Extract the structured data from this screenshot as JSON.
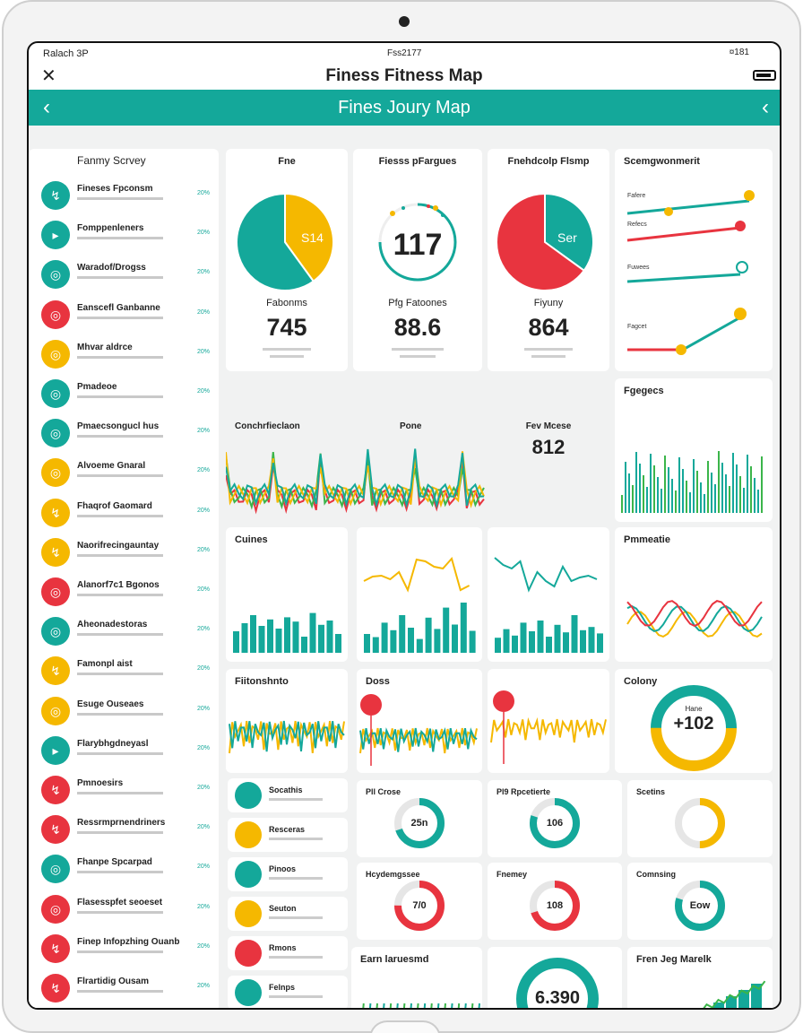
{
  "status": {
    "left": "Ralach 3P",
    "center": "Fss2177",
    "right": "¤181"
  },
  "app": {
    "title": "Finess Fitness Map",
    "close_glyph": "✕"
  },
  "banner": {
    "title": "Fines Joury Map",
    "back_glyph": "‹",
    "forward_glyph": "‹"
  },
  "sidebar": {
    "heading": "Fanmy Scrvey",
    "items": [
      {
        "label": "Fineses Fpconsm",
        "count": "20%",
        "color": "#14a89a",
        "glyph": "↯"
      },
      {
        "label": "Fomppenleners",
        "count": "20%",
        "color": "#14a89a",
        "glyph": "▸"
      },
      {
        "label": "Waradof/Drogss",
        "count": "20%",
        "color": "#14a89a",
        "glyph": "◎"
      },
      {
        "label": "Eanscefl Ganbanne",
        "count": "20%",
        "color": "#e8343f",
        "glyph": "◎"
      },
      {
        "label": "Mhvar aldrce",
        "count": "20%",
        "color": "#f5b800",
        "glyph": "◎"
      },
      {
        "label": "Pmadeoe",
        "count": "20%",
        "color": "#14a89a",
        "glyph": "◎"
      },
      {
        "label": "Pmaecsongucl hus",
        "count": "20%",
        "color": "#14a89a",
        "glyph": "◎"
      },
      {
        "label": "Alvoeme Gnaral",
        "count": "20%",
        "color": "#f5b800",
        "glyph": "◎"
      },
      {
        "label": "Fhaqrof Gaomard",
        "count": "20%",
        "color": "#f5b800",
        "glyph": "↯"
      },
      {
        "label": "Naorifrecingauntay",
        "count": "20%",
        "color": "#f5b800",
        "glyph": "↯"
      },
      {
        "label": "Alanorf7c1 Bgonos",
        "count": "20%",
        "color": "#e8343f",
        "glyph": "◎"
      },
      {
        "label": "Aheonadestoras",
        "count": "20%",
        "color": "#14a89a",
        "glyph": "◎"
      },
      {
        "label": "Famonpl aist",
        "count": "20%",
        "color": "#f5b800",
        "glyph": "↯"
      },
      {
        "label": "Esuge Ouseaes",
        "count": "20%",
        "color": "#f5b800",
        "glyph": "◎"
      },
      {
        "label": "Flarybhgdneyasl",
        "count": "20%",
        "color": "#14a89a",
        "glyph": "▸"
      },
      {
        "label": "Pmnoesirs",
        "count": "20%",
        "color": "#e8343f",
        "glyph": "↯"
      },
      {
        "label": "Ressrmprnendriners",
        "count": "20%",
        "color": "#e8343f",
        "glyph": "↯"
      },
      {
        "label": "Fhanpe Spcarpad",
        "count": "20%",
        "color": "#14a89a",
        "glyph": "◎"
      },
      {
        "label": "Flasesspfet seoeset",
        "count": "20%",
        "color": "#e8343f",
        "glyph": "◎"
      },
      {
        "label": "Finep Infopzhing Ouanb",
        "count": "20%",
        "color": "#e8343f",
        "glyph": "↯"
      },
      {
        "label": "Flrartidig Ousam",
        "count": "20%",
        "color": "#e8343f",
        "glyph": "↯"
      }
    ]
  },
  "top_cards": [
    {
      "title": "Fne",
      "center": "S14",
      "stat": "745",
      "stat_label": "Fabonms",
      "pie": [
        0.4,
        0.6
      ],
      "pie_colors": [
        "#f5b800",
        "#14a89a"
      ]
    },
    {
      "title": "Fiesss pFargues",
      "center": "117",
      "stat": "88.6",
      "stat_label": "Pfg Fatoones",
      "pie": null,
      "pie_colors": []
    },
    {
      "title": "Fnehdcolp Flsmp",
      "center": "Ser",
      "stat": "864",
      "stat_label": "Fiyuny",
      "pie": [
        0.35,
        0.65
      ],
      "pie_colors": [
        "#14a89a",
        "#e8343f"
      ]
    }
  ],
  "right_top": {
    "title": "Scemgwonmerit",
    "rows": [
      "Fafere",
      "Refecs",
      "Fuwees",
      "Fagcet"
    ]
  },
  "wave_card": {
    "title": "Conchrfieclaon",
    "label2": "Pone"
  },
  "pm_card": {
    "title": "Fev Mcese",
    "stat": "812",
    "ticks": [
      "30",
      "10",
      "S2"
    ]
  },
  "bar_card_right": {
    "title": "Fgegecs",
    "ticks": [
      "1C1"
    ]
  },
  "row2": [
    {
      "title": "Cuines",
      "values": [
        40,
        55,
        70,
        50,
        62,
        45,
        66,
        58,
        30,
        74,
        52,
        60,
        35
      ]
    },
    {
      "title": "",
      "values": [
        30,
        25,
        48,
        36,
        60,
        40,
        22,
        56,
        38,
        72,
        45,
        80,
        35
      ]
    },
    {
      "title": "",
      "values": [
        28,
        44,
        32,
        56,
        40,
        60,
        30,
        52,
        38,
        70,
        42,
        48,
        36
      ]
    },
    {
      "title": "Pmmeatie",
      "ticks": [
        "65",
        "50",
        "55",
        "55",
        "50"
      ]
    }
  ],
  "row3": [
    {
      "title": "Fiitonshnto"
    },
    {
      "title": "Doss"
    },
    {
      "title": ""
    },
    {
      "title": "Colony",
      "center": "+102",
      "sub": "Hane"
    }
  ],
  "left_mini": [
    {
      "label": "Socathis",
      "color": "#14a89a"
    },
    {
      "label": "Resceras",
      "color": "#f5b800"
    },
    {
      "label": "Pinoos",
      "color": "#14a89a"
    },
    {
      "label": "Seuton",
      "color": "#f5b800"
    },
    {
      "label": "Rmons",
      "color": "#e8343f"
    },
    {
      "label": "Felnps",
      "color": "#14a89a"
    }
  ],
  "gauge_cards": [
    {
      "title": "Pll Crose",
      "center": "25n",
      "frac": 0.7,
      "color": "#14a89a"
    },
    {
      "title": "Pl9 Rpcetierte",
      "center": "106",
      "frac": 0.8,
      "color": "#14a89a"
    },
    {
      "title": "Scetins",
      "center": "",
      "frac": 0.5,
      "color": "#f5b800"
    },
    {
      "title": "Hcydemgssee",
      "center": "7/0",
      "frac": 0.75,
      "color": "#e8343f"
    },
    {
      "title": "Fnemey",
      "center": "108",
      "frac": 0.7,
      "color": "#e8343f"
    },
    {
      "title": "Comnsing",
      "center": "Eow",
      "frac": 0.8,
      "color": "#14a89a"
    }
  ],
  "bottom": [
    {
      "title": "Earn laruesmd"
    },
    {
      "title": "",
      "center": "6.390"
    },
    {
      "title": "Fren Jeg Marelk"
    }
  ],
  "colors": {
    "teal": "#14a89a",
    "red": "#e8343f",
    "yellow": "#f5b800",
    "green": "#3bb54a"
  }
}
